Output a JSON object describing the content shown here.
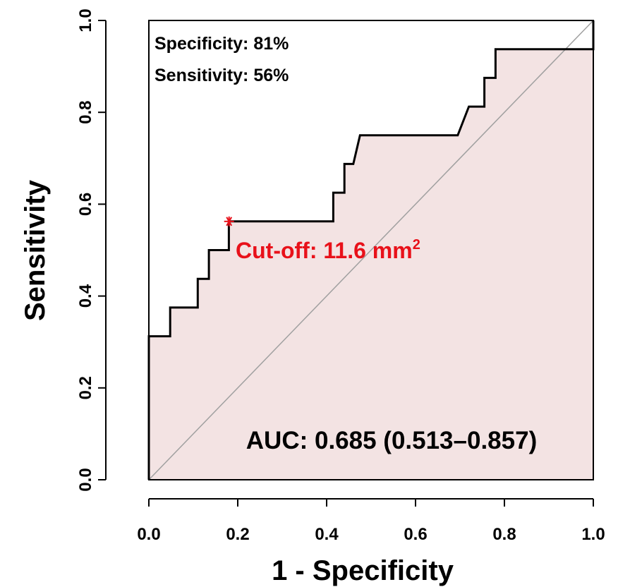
{
  "chart_data": {
    "type": "line",
    "title": "",
    "xlabel": "1 - Specificity",
    "ylabel": "Sensitivity",
    "xlim": [
      0,
      1
    ],
    "ylim": [
      0,
      1
    ],
    "x_ticks": [
      "0.0",
      "0.2",
      "0.4",
      "0.6",
      "0.8",
      "1.0"
    ],
    "y_ticks": [
      "0.0",
      "0.2",
      "0.4",
      "0.6",
      "0.8",
      "1.0"
    ],
    "grid": false,
    "legend": "none",
    "series": [
      {
        "values_xy": [
          [
            0.0,
            0.0
          ],
          [
            0.0,
            0.3125
          ],
          [
            0.048,
            0.3125
          ],
          [
            0.048,
            0.375
          ],
          [
            0.095,
            0.375
          ],
          [
            0.095,
            0.375
          ],
          [
            0.11,
            0.375
          ],
          [
            0.11,
            0.4375
          ],
          [
            0.135,
            0.4375
          ],
          [
            0.135,
            0.5
          ],
          [
            0.18,
            0.5
          ],
          [
            0.18,
            0.5625
          ],
          [
            0.415,
            0.5625
          ],
          [
            0.415,
            0.625
          ],
          [
            0.44,
            0.625
          ],
          [
            0.44,
            0.6875
          ],
          [
            0.46,
            0.6875
          ],
          [
            0.475,
            0.75
          ],
          [
            0.695,
            0.75
          ],
          [
            0.72,
            0.8125
          ],
          [
            0.755,
            0.8125
          ],
          [
            0.755,
            0.875
          ],
          [
            0.78,
            0.875
          ],
          [
            0.78,
            0.9375
          ],
          [
            1.0,
            0.9375
          ],
          [
            1.0,
            1.0
          ]
        ]
      }
    ],
    "diagonal": [
      [
        0,
        0
      ],
      [
        1,
        1
      ]
    ],
    "cutoff_point": [
      0.19,
      0.5625
    ],
    "annotations": {
      "specificity": "Specificity: 81%",
      "sensitivity": "Sensitivity: 56%",
      "cutoff_main": "Cut-off: 11.6 mm",
      "cutoff_sup": "2",
      "auc": "AUC: 0.685 (0.513–0.857)"
    }
  },
  "colors": {
    "curve": "#000000",
    "fill": "#f3e3e3",
    "diagonal": "#a0a0a0",
    "cutoff": "#e8111a",
    "text": "#000000"
  }
}
